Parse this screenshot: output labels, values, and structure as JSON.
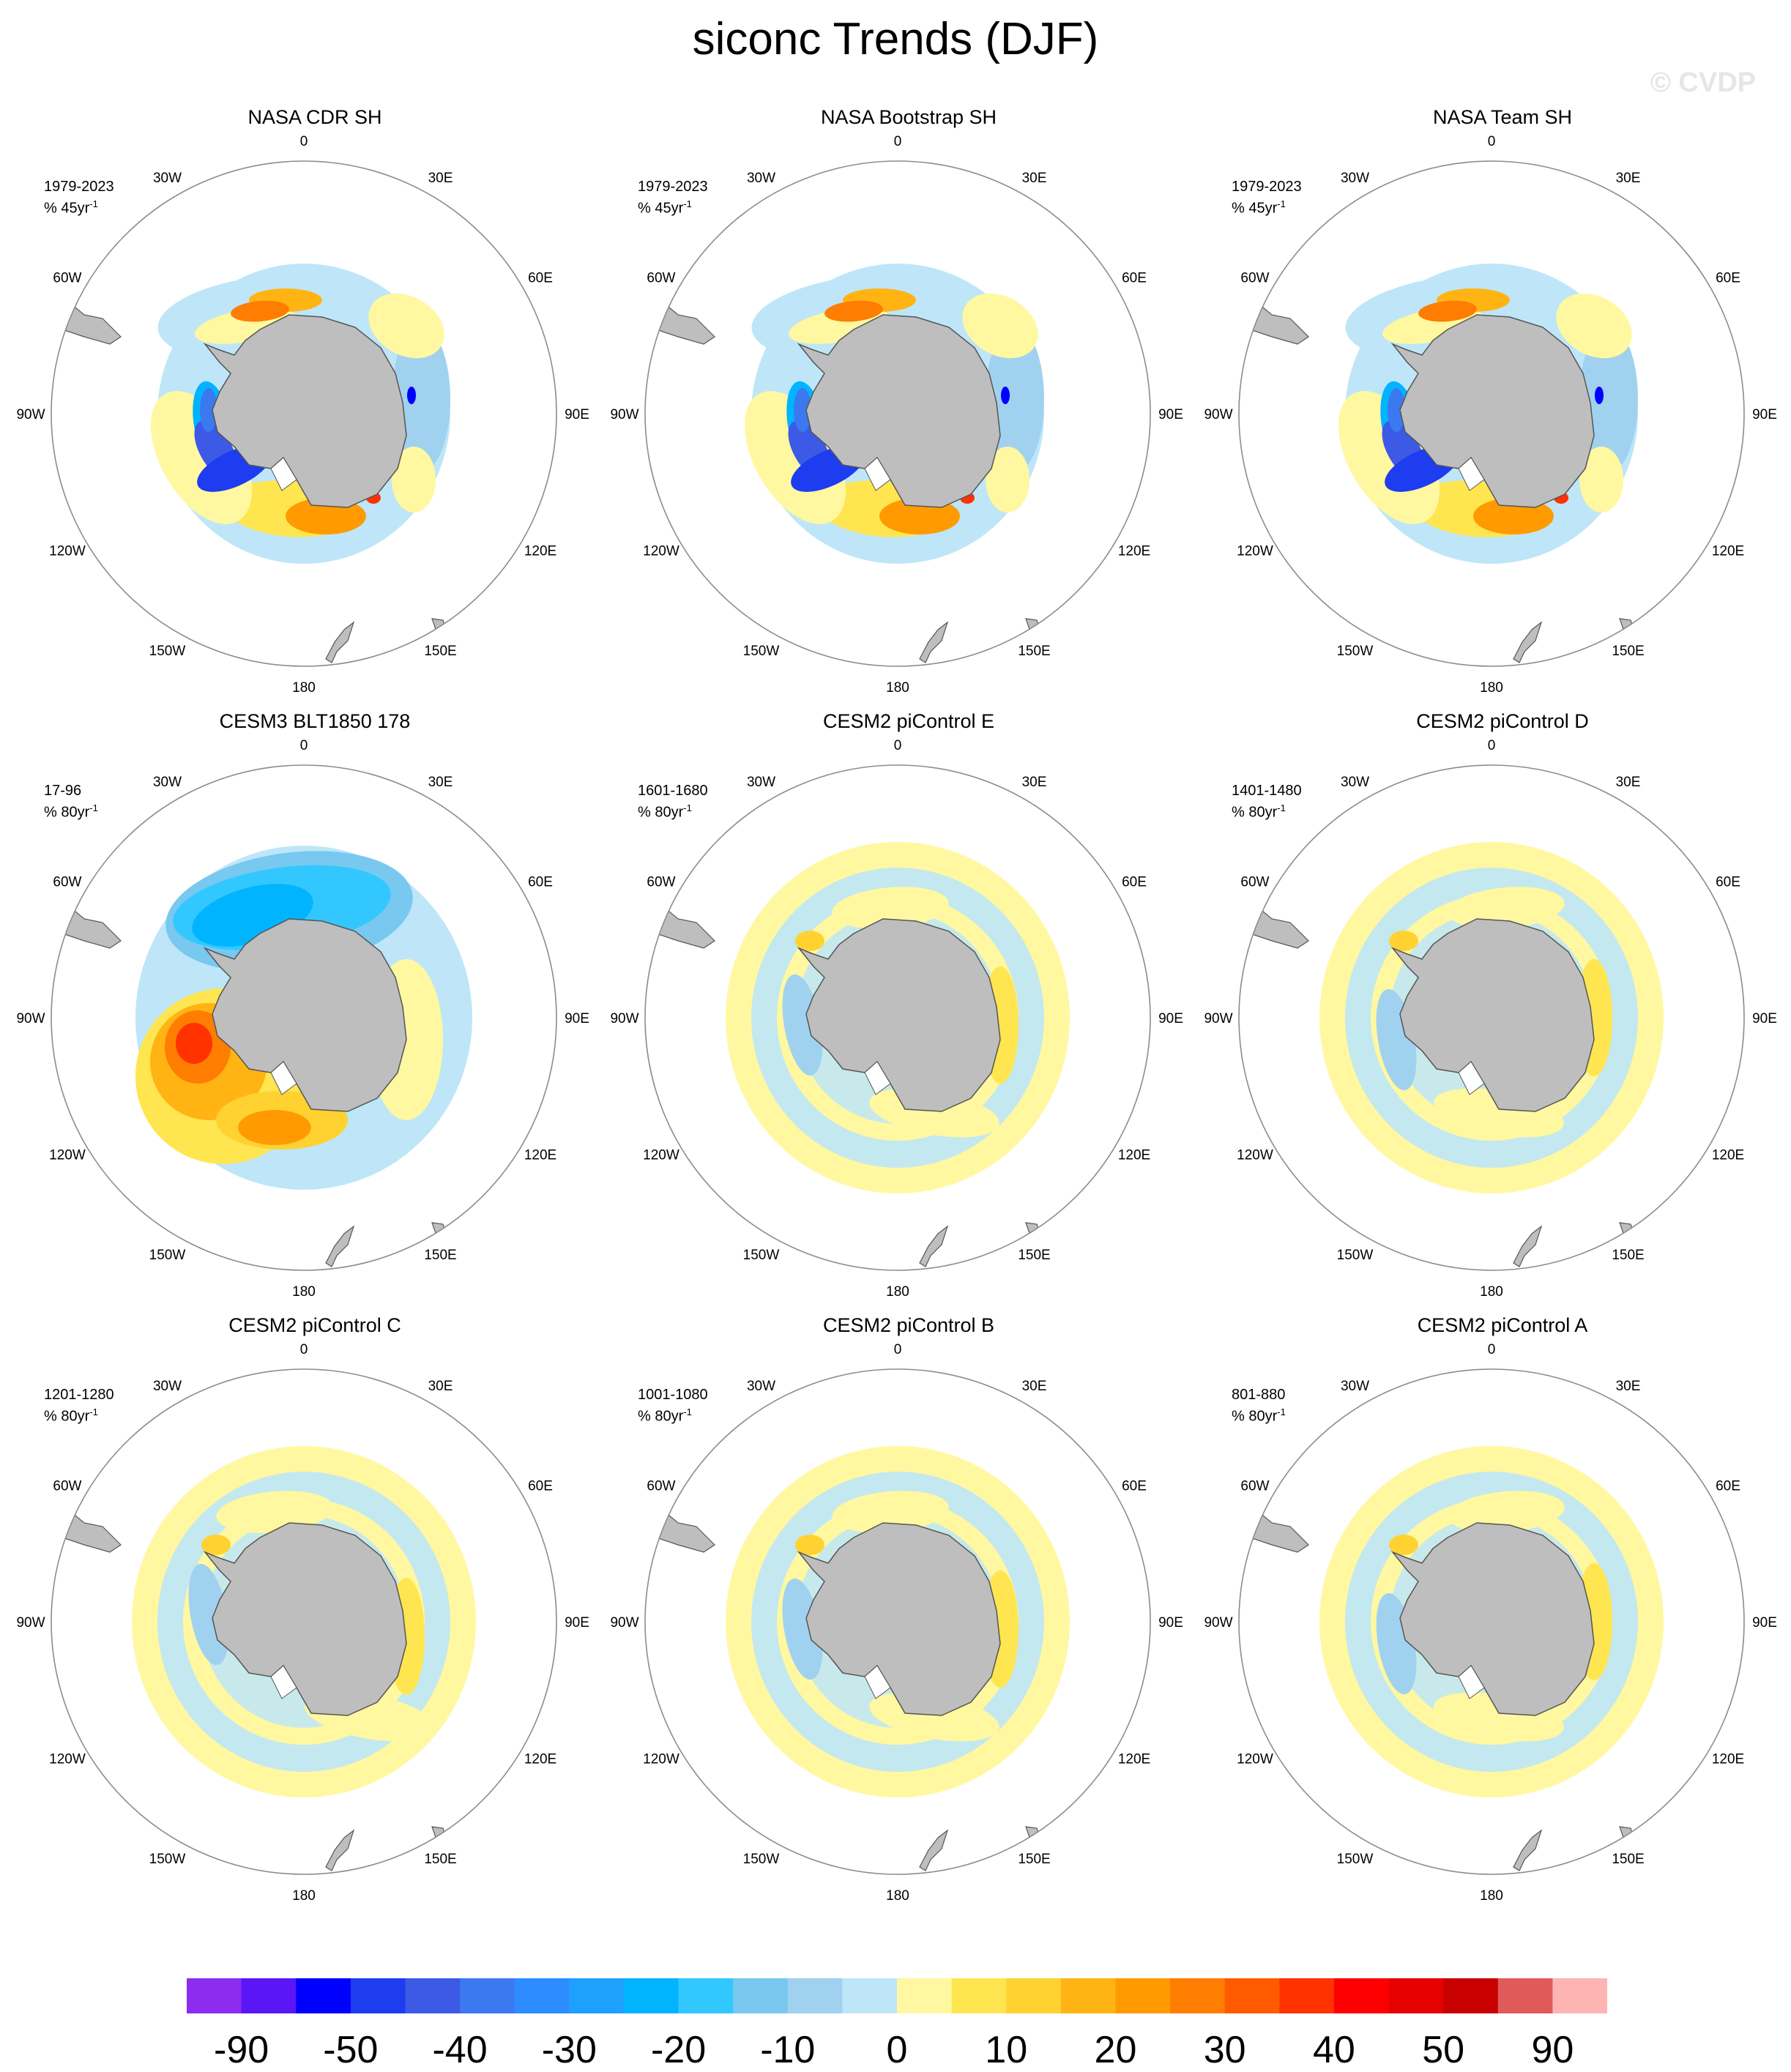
{
  "title": "siconc Trends (DJF)",
  "watermark": "© CVDP",
  "longitude_labels": [
    "0",
    "30E",
    "60E",
    "90E",
    "120E",
    "150E",
    "180",
    "150W",
    "120W",
    "90W",
    "60W",
    "30W"
  ],
  "colors": {
    "land": "#bebebe",
    "coast": "#555555",
    "circle": "#8c8c8c"
  },
  "panels": [
    {
      "title": "NASA CDR SH",
      "period": "1979-2023",
      "units_prefix": "% 45yr",
      "units_exp": "-1",
      "pattern": "obs"
    },
    {
      "title": "NASA Bootstrap SH",
      "period": "1979-2023",
      "units_prefix": "% 45yr",
      "units_exp": "-1",
      "pattern": "obs"
    },
    {
      "title": "NASA Team SH",
      "period": "1979-2023",
      "units_prefix": "% 45yr",
      "units_exp": "-1",
      "pattern": "obs"
    },
    {
      "title": "CESM3 BLT1850 178",
      "period": "17-96",
      "units_prefix": "% 80yr",
      "units_exp": "-1",
      "pattern": "cesm3"
    },
    {
      "title": "CESM2 piControl E",
      "period": "1601-1680",
      "units_prefix": "% 80yr",
      "units_exp": "-1",
      "pattern": "pic"
    },
    {
      "title": "CESM2 piControl D",
      "period": "1401-1480",
      "units_prefix": "% 80yr",
      "units_exp": "-1",
      "pattern": "pic"
    },
    {
      "title": "CESM2 piControl C",
      "period": "1201-1280",
      "units_prefix": "% 80yr",
      "units_exp": "-1",
      "pattern": "pic"
    },
    {
      "title": "CESM2 piControl B",
      "period": "1001-1080",
      "units_prefix": "% 80yr",
      "units_exp": "-1",
      "pattern": "pic"
    },
    {
      "title": "CESM2 piControl A",
      "period": "801-880",
      "units_prefix": "% 80yr",
      "units_exp": "-1",
      "pattern": "pic"
    }
  ],
  "colorbar": {
    "colors": [
      "#8b2cf0",
      "#5a16f5",
      "#0000ff",
      "#1e3cf0",
      "#3c5ae6",
      "#3c78f0",
      "#2d8cff",
      "#1ea0ff",
      "#00b4ff",
      "#32c8ff",
      "#78c8f0",
      "#a0d2f0",
      "#bee6f8",
      "#fff8a0",
      "#ffe650",
      "#ffd232",
      "#ffb414",
      "#ff9b00",
      "#ff7d00",
      "#ff5a00",
      "#ff3200",
      "#ff0000",
      "#e60000",
      "#c80000",
      "#e05a5a",
      "#ffb4b4"
    ],
    "labels": [
      "-90",
      "-50",
      "-40",
      "-30",
      "-20",
      "-10",
      "0",
      "10",
      "20",
      "30",
      "40",
      "50",
      "90"
    ]
  }
}
